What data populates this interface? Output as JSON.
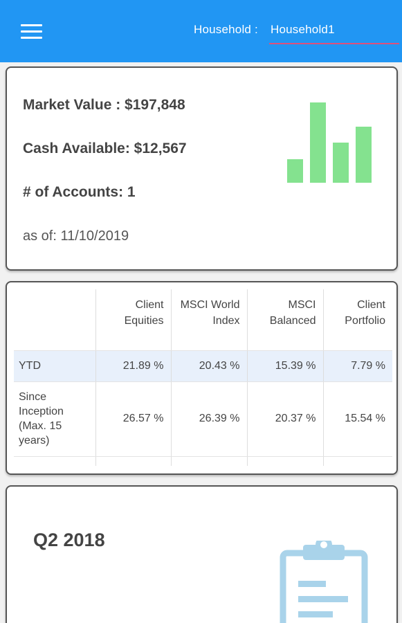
{
  "header": {
    "household_label": "Household : ",
    "household_value": "Household1",
    "accent_color": "#2196f3",
    "underline_color": "#e0507a",
    "menu_icon": "hamburger-menu-icon"
  },
  "summary": {
    "market_value": "Market Value : $197,848",
    "cash_available": "Cash Available: $12,567",
    "accounts": "# of Accounts: 1",
    "as_of": "as of: 11/10/2019",
    "chart_icon": "bar-chart-icon",
    "chart_color": "#84e28f",
    "chart_levels": [
      0.29,
      1.0,
      0.5,
      0.7
    ]
  },
  "performance": {
    "columns": [
      "",
      "Client Equities",
      "MSCI World Index",
      "MSCI Balanced",
      "Client Portfolio"
    ],
    "rows": [
      {
        "label": "YTD",
        "values": [
          "21.89 %",
          "20.43 %",
          "15.39 %",
          "7.79 %"
        ]
      },
      {
        "label": "Since Inception (Max. 15 years)",
        "values": [
          "26.57 %",
          "26.39 %",
          "20.37 %",
          "15.54 %"
        ]
      }
    ],
    "highlight_color": "#e8f0fb"
  },
  "quarter": {
    "title": "Q2 2018",
    "icon": "clipboard-icon",
    "icon_color": "#a9d3ea"
  }
}
